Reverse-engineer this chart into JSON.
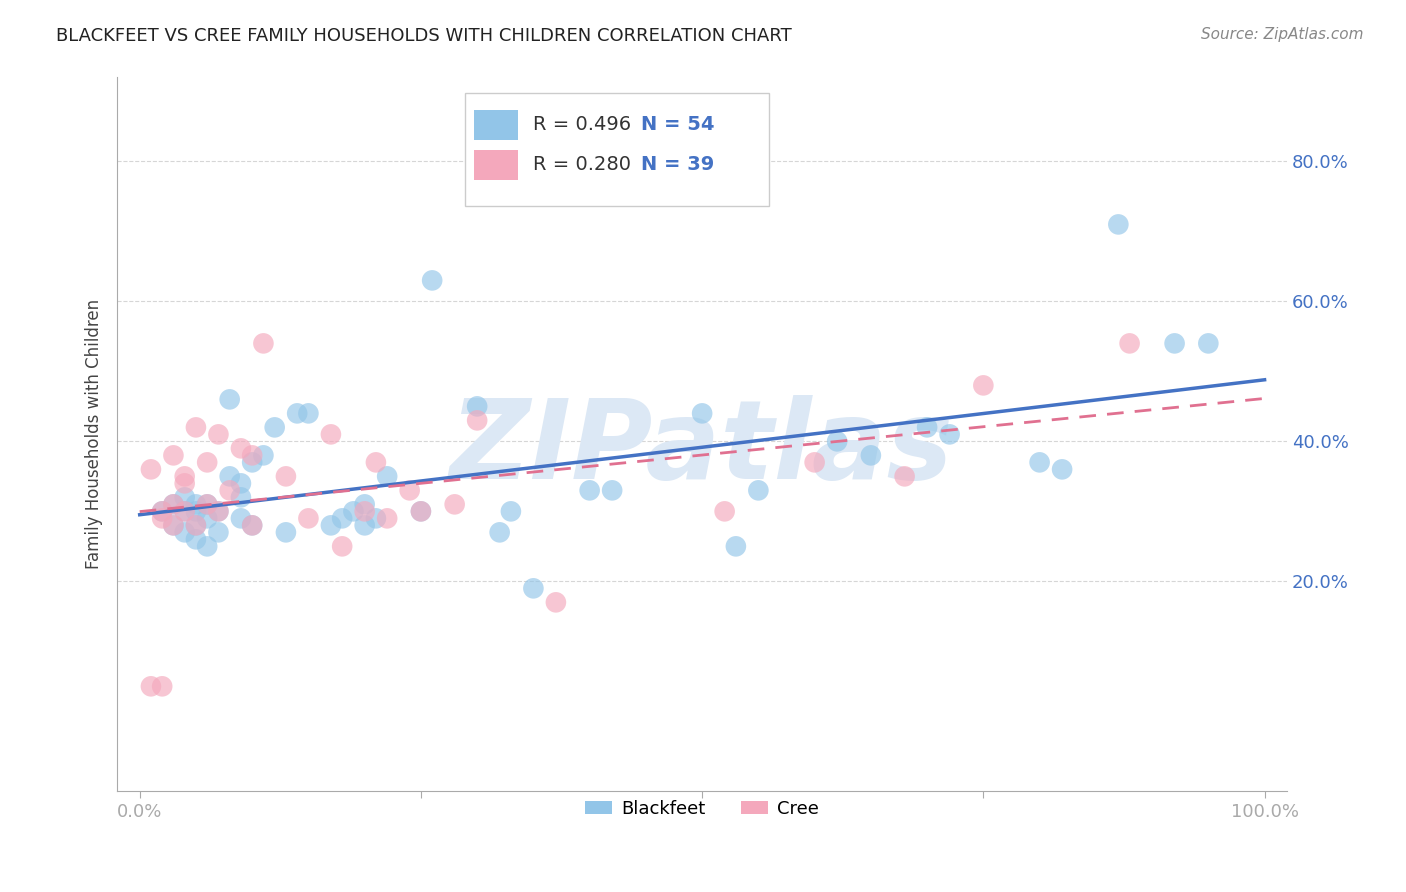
{
  "title": "BLACKFEET VS CREE FAMILY HOUSEHOLDS WITH CHILDREN CORRELATION CHART",
  "source": "Source: ZipAtlas.com",
  "ylabel": "Family Households with Children",
  "xlim": [
    -0.02,
    1.02
  ],
  "ylim": [
    -0.1,
    0.92
  ],
  "xtick_positions": [
    0.0,
    0.25,
    0.5,
    0.75,
    1.0
  ],
  "xticklabels": [
    "0.0%",
    "",
    "",
    "",
    "100.0%"
  ],
  "ytick_positions": [
    0.2,
    0.4,
    0.6,
    0.8
  ],
  "ytick_labels": [
    "20.0%",
    "40.0%",
    "60.0%",
    "80.0%"
  ],
  "blackfeet_R": 0.496,
  "blackfeet_N": 54,
  "cree_R": 0.28,
  "cree_N": 39,
  "blackfeet_color": "#92c5e8",
  "cree_color": "#f4a8bc",
  "blackfeet_line_color": "#4472c4",
  "cree_line_color": "#e07090",
  "watermark": "ZIPatlas",
  "watermark_color": "#dce8f5",
  "background_color": "#ffffff",
  "blackfeet_x": [
    0.02,
    0.03,
    0.03,
    0.04,
    0.04,
    0.04,
    0.05,
    0.05,
    0.05,
    0.05,
    0.06,
    0.06,
    0.06,
    0.07,
    0.07,
    0.08,
    0.08,
    0.09,
    0.09,
    0.09,
    0.1,
    0.1,
    0.11,
    0.12,
    0.13,
    0.14,
    0.15,
    0.17,
    0.18,
    0.19,
    0.2,
    0.2,
    0.21,
    0.22,
    0.25,
    0.26,
    0.3,
    0.32,
    0.33,
    0.35,
    0.4,
    0.42,
    0.5,
    0.53,
    0.55,
    0.62,
    0.65,
    0.7,
    0.72,
    0.8,
    0.82,
    0.87,
    0.92,
    0.95
  ],
  "blackfeet_y": [
    0.3,
    0.28,
    0.31,
    0.27,
    0.3,
    0.32,
    0.26,
    0.28,
    0.3,
    0.31,
    0.25,
    0.29,
    0.31,
    0.27,
    0.3,
    0.46,
    0.35,
    0.29,
    0.32,
    0.34,
    0.28,
    0.37,
    0.38,
    0.42,
    0.27,
    0.44,
    0.44,
    0.28,
    0.29,
    0.3,
    0.28,
    0.31,
    0.29,
    0.35,
    0.3,
    0.63,
    0.45,
    0.27,
    0.3,
    0.19,
    0.33,
    0.33,
    0.44,
    0.25,
    0.33,
    0.4,
    0.38,
    0.42,
    0.41,
    0.37,
    0.36,
    0.71,
    0.54,
    0.54
  ],
  "cree_x": [
    0.01,
    0.01,
    0.02,
    0.02,
    0.02,
    0.03,
    0.03,
    0.03,
    0.04,
    0.04,
    0.04,
    0.05,
    0.05,
    0.06,
    0.06,
    0.07,
    0.07,
    0.08,
    0.09,
    0.1,
    0.1,
    0.11,
    0.13,
    0.15,
    0.17,
    0.18,
    0.2,
    0.21,
    0.22,
    0.24,
    0.25,
    0.28,
    0.3,
    0.37,
    0.52,
    0.6,
    0.68,
    0.75,
    0.88
  ],
  "cree_y": [
    0.36,
    0.05,
    0.29,
    0.3,
    0.05,
    0.28,
    0.31,
    0.38,
    0.3,
    0.34,
    0.35,
    0.28,
    0.42,
    0.31,
    0.37,
    0.3,
    0.41,
    0.33,
    0.39,
    0.28,
    0.38,
    0.54,
    0.35,
    0.29,
    0.41,
    0.25,
    0.3,
    0.37,
    0.29,
    0.33,
    0.3,
    0.31,
    0.43,
    0.17,
    0.3,
    0.37,
    0.35,
    0.48,
    0.54
  ]
}
